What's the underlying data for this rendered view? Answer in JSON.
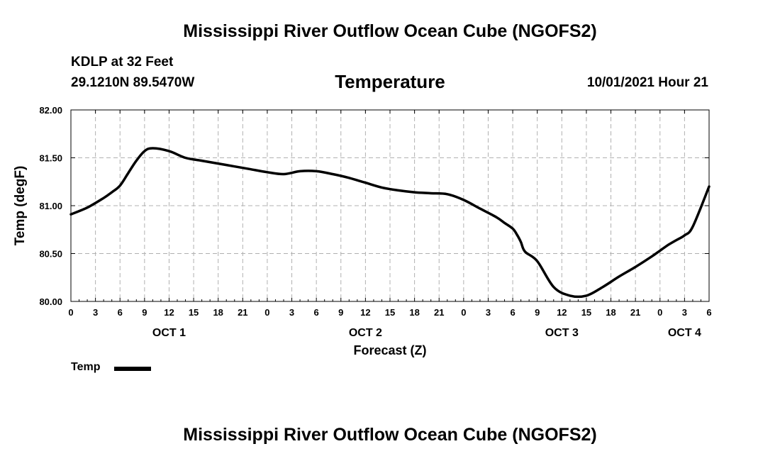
{
  "header": {
    "title": "Mississippi River Outflow Ocean Cube (NGOFS2)",
    "station": "KDLP at 32 Feet",
    "coords": "29.1210N  89.5470W",
    "variable": "Temperature",
    "datetime": "10/01/2021 Hour 21"
  },
  "footer": {
    "title": "Mississippi River Outflow Ocean Cube (NGOFS2)"
  },
  "legend": {
    "label": "Temp"
  },
  "colors": {
    "line": "#000000",
    "grid": "#b0b0b0",
    "background": "#ffffff"
  },
  "chart_data": {
    "type": "line",
    "title": "Temperature",
    "xlabel": "Forecast (Z)",
    "ylabel": "Temp (degF)",
    "grid": true,
    "legend_position": "bottom-left",
    "x_unit": "hours since OCT 1 00Z",
    "xlim": [
      -9,
      69
    ],
    "ylim": [
      80.0,
      82.0
    ],
    "y_ticks": [
      80.0,
      80.5,
      81.0,
      81.5,
      82.0
    ],
    "y_tick_labels": [
      "80.00",
      "80.50",
      "81.00",
      "81.50",
      "82.00"
    ],
    "x_ticks": [
      -9,
      -6,
      -3,
      0,
      3,
      6,
      9,
      12,
      15,
      18,
      21,
      24,
      27,
      30,
      33,
      36,
      39,
      42,
      45,
      48,
      51,
      54,
      57,
      60,
      63,
      66,
      69
    ],
    "x_tick_labels": [
      "0",
      "3",
      "6",
      "9",
      "12",
      "15",
      "18",
      "21",
      "0",
      "3",
      "6",
      "9",
      "12",
      "15",
      "18",
      "21",
      "0",
      "3",
      "6",
      "9",
      "12",
      "15",
      "18",
      "21",
      "0",
      "3",
      "6"
    ],
    "date_labels": [
      {
        "x": 3,
        "label": "OCT 1"
      },
      {
        "x": 27,
        "label": "OCT 2"
      },
      {
        "x": 51,
        "label": "OCT 3"
      },
      {
        "x": 66,
        "label": "OCT 4"
      }
    ],
    "series": [
      {
        "name": "Temp",
        "x": [
          -9,
          -7,
          -5,
          -4,
          -3,
          -2,
          -1,
          0,
          1,
          3,
          5,
          7,
          9,
          11,
          13,
          15,
          17,
          19,
          21,
          23,
          25,
          27,
          29,
          31,
          33,
          35,
          37,
          39,
          41,
          43,
          44,
          45,
          45.5,
          46,
          46.5,
          48,
          50,
          52,
          54,
          56,
          58,
          60,
          62,
          63,
          64,
          65,
          66,
          67,
          69
        ],
        "y": [
          80.91,
          80.98,
          81.08,
          81.14,
          81.21,
          81.34,
          81.47,
          81.57,
          81.6,
          81.57,
          81.5,
          81.47,
          81.44,
          81.41,
          81.38,
          81.35,
          81.33,
          81.36,
          81.36,
          81.33,
          81.29,
          81.24,
          81.19,
          81.16,
          81.14,
          81.13,
          81.12,
          81.06,
          80.97,
          80.88,
          80.82,
          80.76,
          80.7,
          80.62,
          80.52,
          80.42,
          80.15,
          80.06,
          80.06,
          80.15,
          80.26,
          80.36,
          80.47,
          80.53,
          80.59,
          80.64,
          80.69,
          80.78,
          81.2
        ]
      }
    ]
  }
}
